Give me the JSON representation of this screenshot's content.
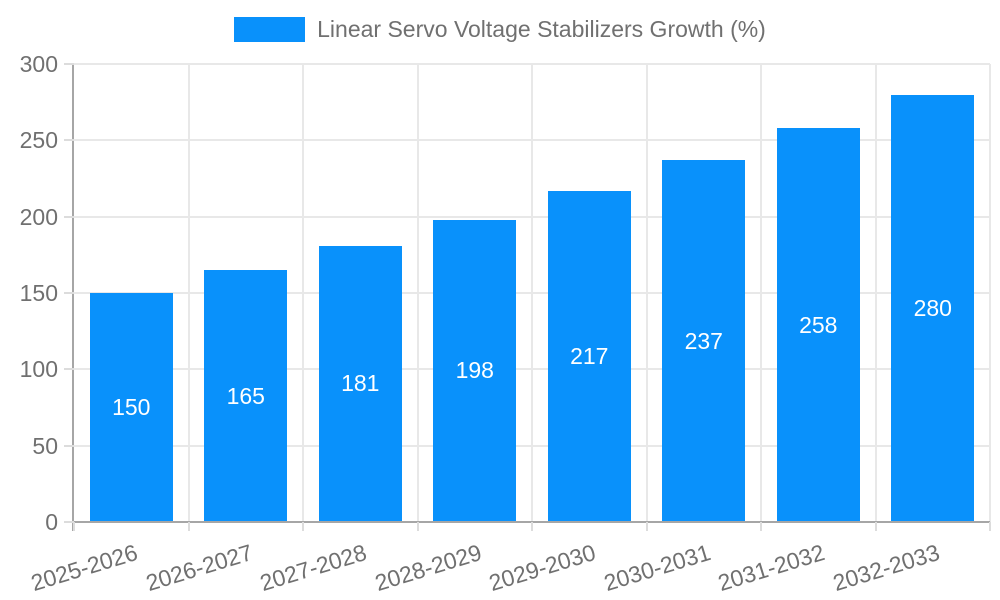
{
  "chart_data": {
    "type": "bar",
    "title": "Linear Servo Voltage Stabilizers Growth (%)",
    "legend": [
      "Linear Servo Voltage Stabilizers Growth (%)"
    ],
    "legend_position": "top-center",
    "categories": [
      "2025-2026",
      "2026-2027",
      "2027-2028",
      "2028-2029",
      "2029-2030",
      "2030-2031",
      "2031-2032",
      "2032-2033"
    ],
    "values": [
      150,
      165,
      181,
      198,
      217,
      237,
      258,
      280
    ],
    "xlabel": "",
    "ylabel": "",
    "ylim": [
      0,
      300
    ],
    "yticks": [
      0,
      50,
      100,
      150,
      200,
      250,
      300
    ],
    "grid": "on",
    "value_labels": "inside-center",
    "colors": {
      "bar": "#0991fb",
      "axis_line": "#a6a6a6",
      "gridline": "#e8e8e8",
      "tick": "#dcdcdc",
      "text": "#707070",
      "value_label": "#ffffff"
    }
  }
}
